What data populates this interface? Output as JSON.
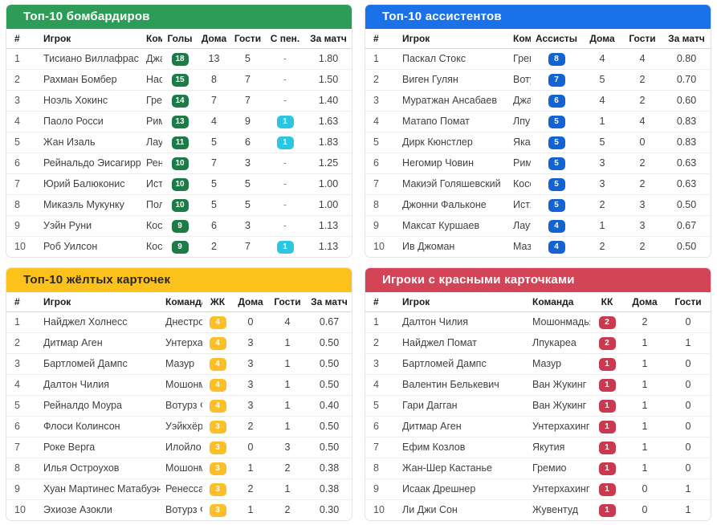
{
  "tables": [
    {
      "id": "top-scorers",
      "title": "Топ-10 бомбардиров",
      "header_color": "#2e9c59",
      "header_text_color": "#ffffff",
      "columns": [
        "#",
        "Игрок",
        "Команда",
        "Голы",
        "Дома",
        "Гости",
        "С пен.",
        "За матч"
      ],
      "badge_columns": {
        "3": "green",
        "6": "cyan"
      },
      "rows": [
        [
          "1",
          "Тисиано Виллафрас",
          "Джаблотех",
          "18",
          "13",
          "5",
          "-",
          "1.80"
        ],
        [
          "2",
          "Рахман Бомбер",
          "Насарава Юнайтед",
          "15",
          "8",
          "7",
          "-",
          "1.50"
        ],
        [
          "3",
          "Ноэль Хокинс",
          "Гремио",
          "14",
          "7",
          "7",
          "-",
          "1.40"
        ],
        [
          "4",
          "Паоло Росси",
          "Римини",
          "13",
          "4",
          "9",
          "1",
          "1.63"
        ],
        [
          "5",
          "Жан Изаль",
          "Лаутока",
          "11",
          "5",
          "6",
          "1",
          "1.83"
        ],
        [
          "6",
          "Рейнальдо Эисагирре",
          "Ренессанс Кигали",
          "10",
          "7",
          "3",
          "-",
          "1.25"
        ],
        [
          "7",
          "Юрий Балюконис",
          "Истхаусес Лили",
          "10",
          "5",
          "5",
          "-",
          "1.00"
        ],
        [
          "8",
          "Микаэль Мукунку",
          "Полония",
          "10",
          "5",
          "5",
          "-",
          "1.00"
        ],
        [
          "9",
          "Уэйн Руни",
          "Косса",
          "9",
          "6",
          "3",
          "-",
          "1.13"
        ],
        [
          "10",
          "Роб Уилсон",
          "Косса",
          "9",
          "2",
          "7",
          "1",
          "1.13"
        ]
      ]
    },
    {
      "id": "top-assistants",
      "title": "Топ-10 ассистентов",
      "header_color": "#1a71e8",
      "header_text_color": "#ffffff",
      "columns": [
        "#",
        "Игрок",
        "Команда",
        "Ассисты",
        "Дома",
        "Гости",
        "За матч"
      ],
      "badge_columns": {
        "3": "blue"
      },
      "rows": [
        [
          "1",
          "Паскал Стокс",
          "Гремио",
          "8",
          "4",
          "4",
          "0.80"
        ],
        [
          "2",
          "Виген Гулян",
          "Вотурз Ф.К.",
          "7",
          "5",
          "2",
          "0.70"
        ],
        [
          "3",
          "Муратжан Ансабаев",
          "Джаблотех",
          "6",
          "4",
          "2",
          "0.60"
        ],
        [
          "4",
          "Матапо Помат",
          "Лпукареа",
          "5",
          "1",
          "4",
          "0.83"
        ],
        [
          "5",
          "Дирк Кюнстлер",
          "Якар",
          "5",
          "5",
          "0",
          "0.83"
        ],
        [
          "6",
          "Негомир Човин",
          "Римини",
          "5",
          "3",
          "2",
          "0.63"
        ],
        [
          "7",
          "Макиэй Голяшевский",
          "Косса",
          "5",
          "3",
          "2",
          "0.63"
        ],
        [
          "8",
          "Джонни Фальконе",
          "Истхаусес Лили",
          "5",
          "2",
          "3",
          "0.50"
        ],
        [
          "9",
          "Максат Куршаев",
          "Лаутока",
          "4",
          "1",
          "3",
          "0.67"
        ],
        [
          "10",
          "Ив Джоман",
          "Мазур",
          "4",
          "2",
          "2",
          "0.50"
        ]
      ]
    },
    {
      "id": "top-yellow-cards",
      "title": "Топ-10 жёлтых карточек",
      "header_color": "#fcc21b",
      "header_text_color": "#292podpisać",
      "columns": [
        "#",
        "Игрок",
        "Команда",
        "ЖК",
        "Дома",
        "Гости",
        "За матч"
      ],
      "badge_columns": {
        "3": "yellow"
      },
      "rows": [
        [
          "1",
          "Найджел Холнесс",
          "Днестровец",
          "4",
          "0",
          "4",
          "0.67"
        ],
        [
          "2",
          "Дитмар Аген",
          "Унтерхахинг",
          "4",
          "3",
          "1",
          "0.50"
        ],
        [
          "3",
          "Бартломей Дампс",
          "Мазур",
          "4",
          "3",
          "1",
          "0.50"
        ],
        [
          "4",
          "Далтон Чилия",
          "Мошонмадьяровари ТЭ",
          "4",
          "3",
          "1",
          "0.50"
        ],
        [
          "5",
          "Рейналдо Моура",
          "Вотурз Ф.К.",
          "4",
          "3",
          "1",
          "0.40"
        ],
        [
          "6",
          "Флоси Колинсон",
          "Уэйкхёрст",
          "3",
          "2",
          "1",
          "0.50"
        ],
        [
          "7",
          "Роке Верга",
          "Илойло",
          "3",
          "0",
          "3",
          "0.50"
        ],
        [
          "8",
          "Илья Остроухов",
          "Мошонмадьяровари ТЭ",
          "3",
          "1",
          "2",
          "0.38"
        ],
        [
          "9",
          "Хуан Мартинес Матабуэна",
          "Ренессанс Кигали",
          "3",
          "2",
          "1",
          "0.38"
        ],
        [
          "10",
          "Эхиозе Азокли",
          "Вотурз Ф.К.",
          "3",
          "1",
          "2",
          "0.30"
        ]
      ]
    },
    {
      "id": "red-cards",
      "title": "Игроки с красными карточками",
      "header_color": "#d34456",
      "header_text_color": "#ffffff",
      "columns": [
        "#",
        "Игрок",
        "Команда",
        "КК",
        "Дома",
        "Гости"
      ],
      "badge_columns": {
        "3": "red"
      },
      "rows": [
        [
          "1",
          "Далтон Чилия",
          "Мошонмадьяровари ТЭ",
          "2",
          "2",
          "0"
        ],
        [
          "2",
          "Найджел Помат",
          "Лпукареа",
          "2",
          "1",
          "1"
        ],
        [
          "3",
          "Бартломей Дампс",
          "Мазур",
          "1",
          "1",
          "0"
        ],
        [
          "4",
          "Валентин Белькевич",
          "Ван Жукинг",
          "1",
          "1",
          "0"
        ],
        [
          "5",
          "Гари Дагган",
          "Ван Жукинг",
          "1",
          "1",
          "0"
        ],
        [
          "6",
          "Дитмар Аген",
          "Унтерхахинг",
          "1",
          "1",
          "0"
        ],
        [
          "7",
          "Ефим Козлов",
          "Якутия",
          "1",
          "1",
          "0"
        ],
        [
          "8",
          "Жан-Шер Кастанье",
          "Гремио",
          "1",
          "1",
          "0"
        ],
        [
          "9",
          "Исаак Дрешнер",
          "Унтерхахинг",
          "1",
          "0",
          "1"
        ],
        [
          "10",
          "Ли Джи Сон",
          "Жувентуд",
          "1",
          "0",
          "1"
        ]
      ]
    }
  ]
}
